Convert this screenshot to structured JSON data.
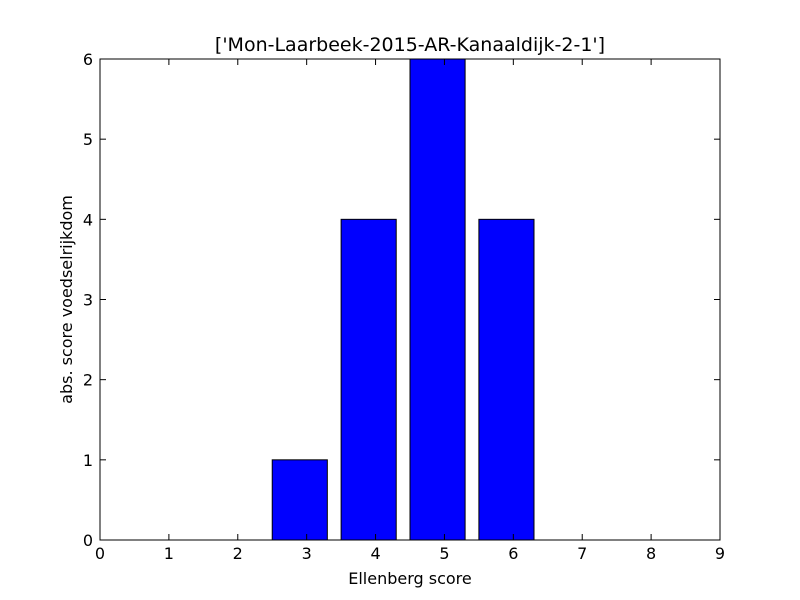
{
  "chart_data": {
    "type": "bar",
    "title": "['Mon-Laarbeek-2015-AR-Kanaaldijk-2-1']",
    "xlabel": "Ellenberg score",
    "ylabel": "abs. score voedselrijkdom",
    "xlim": [
      0,
      9
    ],
    "ylim": [
      0,
      6
    ],
    "x_ticks": [
      0,
      1,
      2,
      3,
      4,
      5,
      6,
      7,
      8,
      9
    ],
    "y_ticks": [
      0,
      1,
      2,
      3,
      4,
      5,
      6
    ],
    "bar_width": 0.8,
    "x": [
      1,
      2,
      3,
      4,
      5,
      6,
      7,
      8
    ],
    "values": [
      0,
      0,
      1,
      4,
      6,
      4,
      0,
      0
    ],
    "bar_color": "#0000ff",
    "edge_color": "#000000",
    "grid": false,
    "legend": "none"
  }
}
